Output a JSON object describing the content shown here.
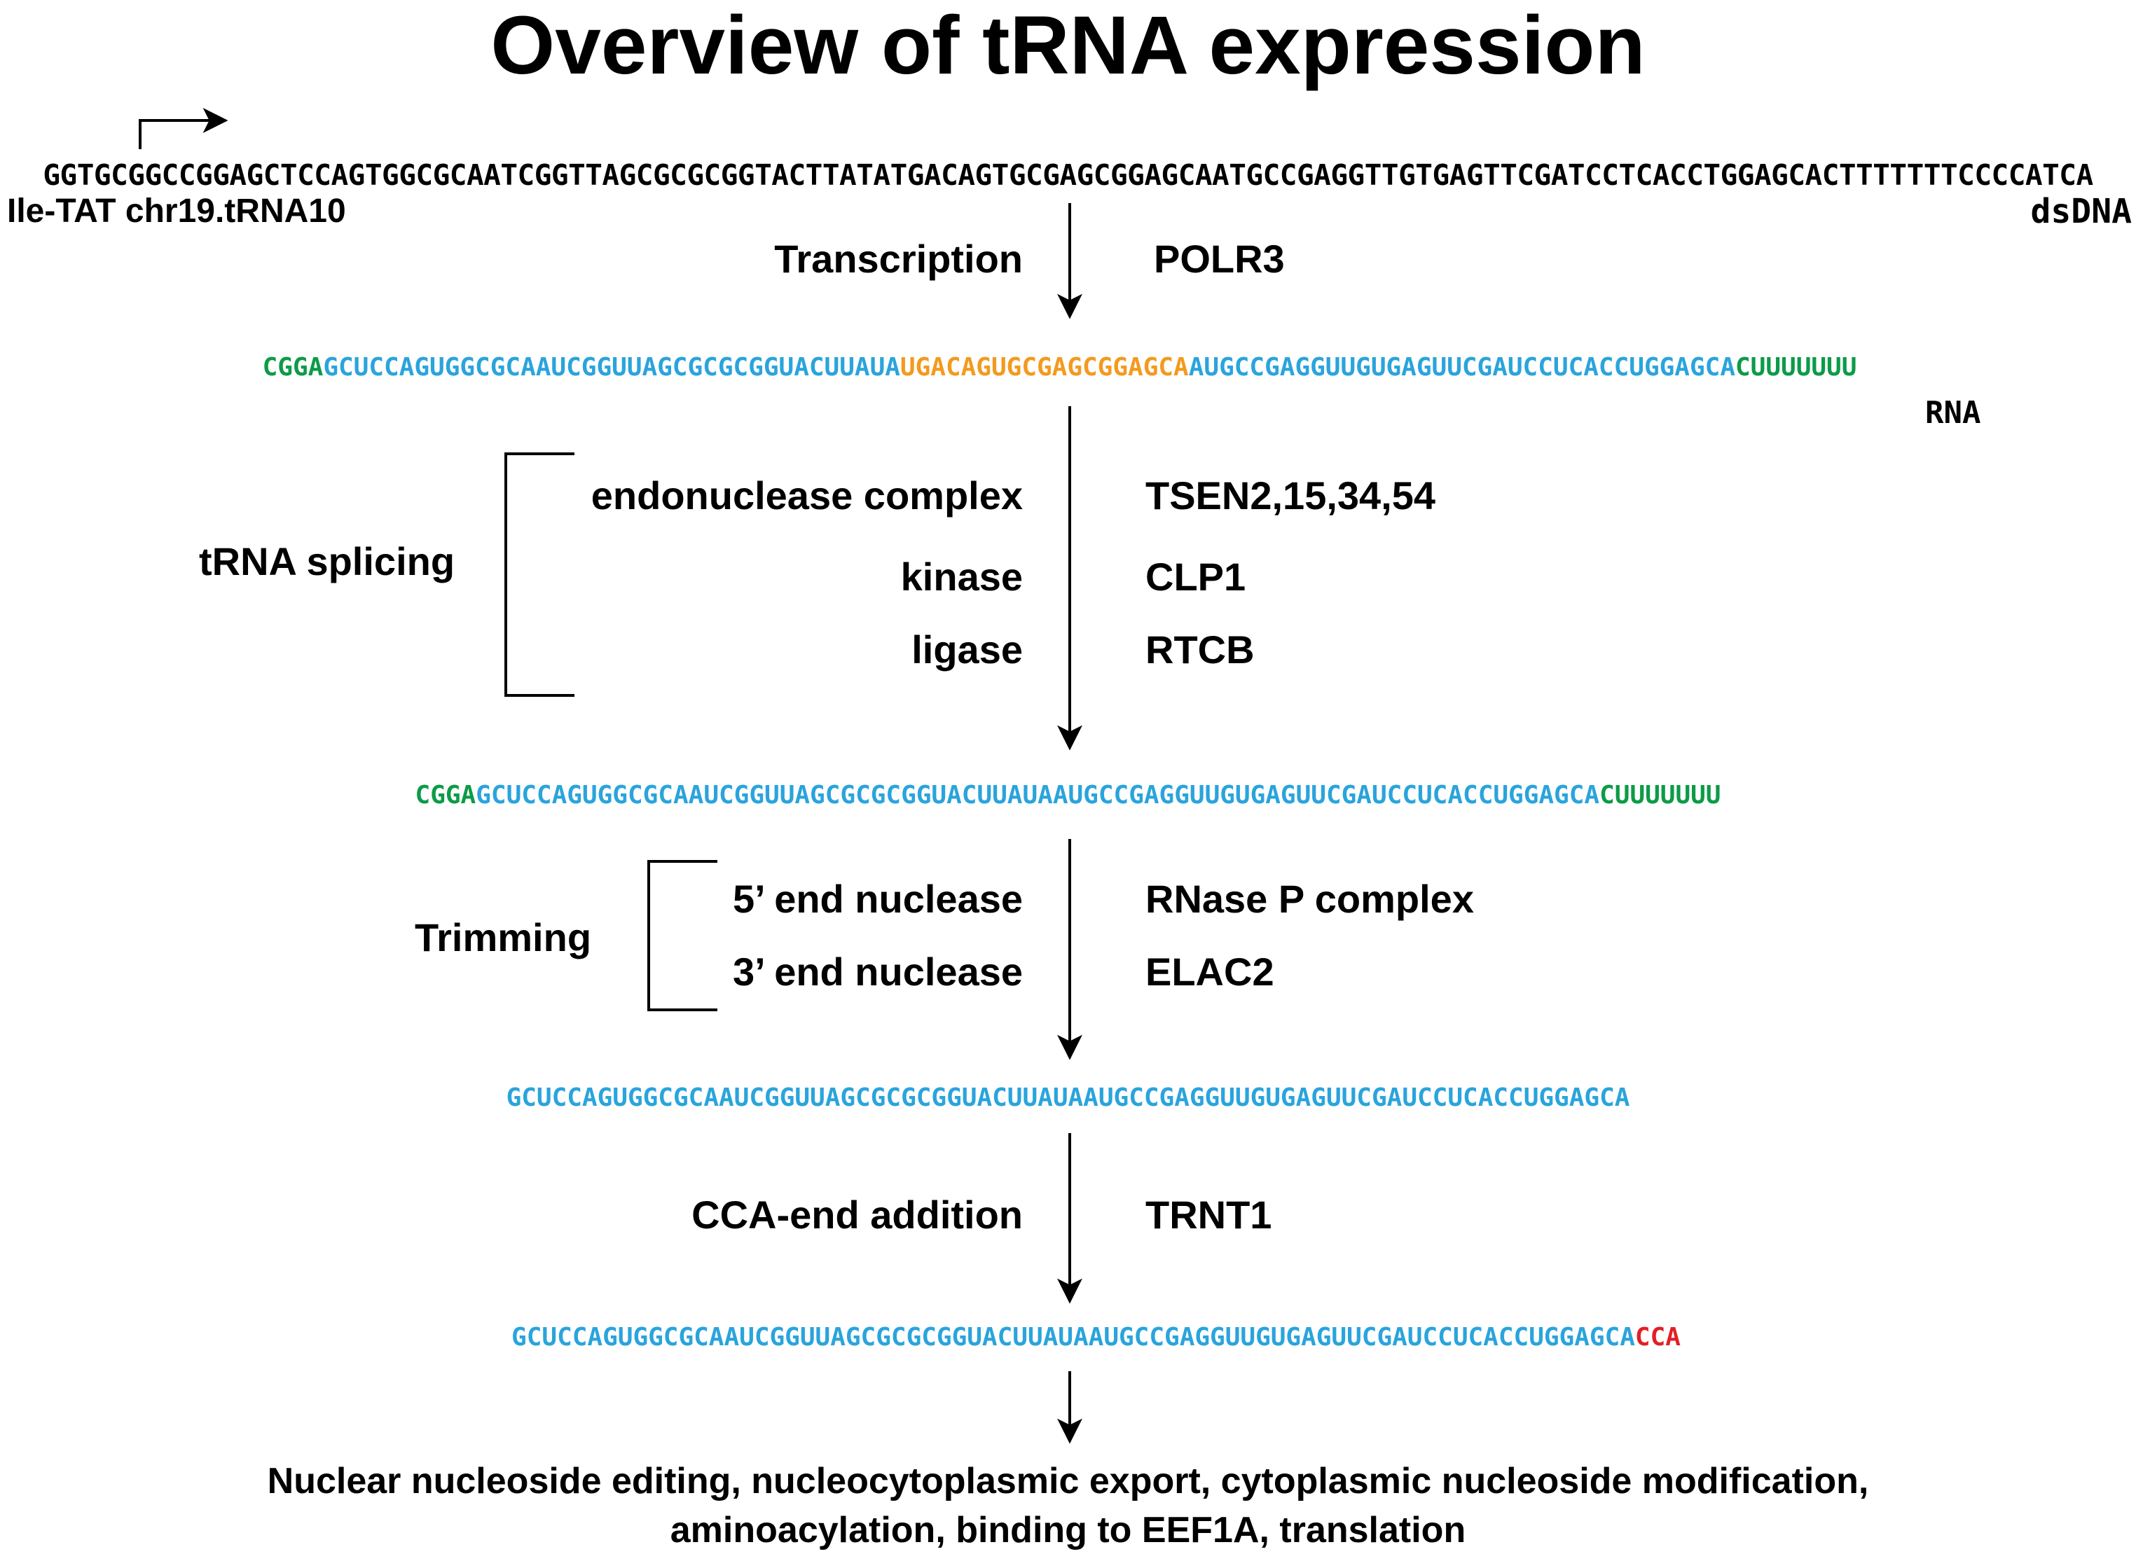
{
  "title": "Overview of tRNA expression",
  "colors": {
    "flank": "#0c9b47",
    "mature": "#2aa4dc",
    "intron": "#f39a1e",
    "cca": "#e21f26",
    "text": "#000000"
  },
  "dna": {
    "sequence": "GGTGCGGCCGGAGCTCCAGTGGCGCAATCGGTTAGCGCGCGGTACTTATATGACAGTGCGAGCGGAGCAATGCCGAGGTTGTGAGTTCGATCCTCACCTGGAGCACTTTTTTTCCCCATCA",
    "gene_label": "Ile-TAT chr19.tRNA10",
    "type_label": "dsDNA"
  },
  "steps": [
    {
      "label": "Transcription",
      "enzyme": "POLR3"
    }
  ],
  "pre_trna": {
    "flank5": "CGGA",
    "exon1": "GCUCCAGUGGCGCAAUCGGUUAGCGCGCGGUACUUAUA",
    "intron": "UGACAGUGCGAGCGGAGCA",
    "exon2": "AUGCCGAGGUUGUGAGUUCGAUCCUCACCUGGAGCA",
    "flank3": "CUUUUUUU",
    "type_label": "RNA"
  },
  "splicing": {
    "group_label": "tRNA splicing",
    "items": [
      {
        "label": "endonuclease complex",
        "enzyme": "TSEN2,15,34,54"
      },
      {
        "label": "kinase",
        "enzyme": "CLP1"
      },
      {
        "label": "ligase",
        "enzyme": "RTCB"
      }
    ]
  },
  "spliced": {
    "flank5": "CGGA",
    "body": "GCUCCAGUGGCGCAAUCGGUUAGCGCGCGGUACUUAUAAUGCCGAGGUUGUGAGUUCGAUCCUCACCUGGAGCA",
    "flank3": "CUUUUUUU"
  },
  "trimming": {
    "group_label": "Trimming",
    "items": [
      {
        "label": "5’ end nuclease",
        "enzyme": "RNase P complex"
      },
      {
        "label": "3’ end nuclease",
        "enzyme": "ELAC2"
      }
    ]
  },
  "trimmed": {
    "body": "GCUCCAGUGGCGCAAUCGGUUAGCGCGCGGUACUUAUAAUGCCGAGGUUGUGAGUUCGAUCCUCACCUGGAGCA"
  },
  "cca_step": {
    "label": "CCA-end addition",
    "enzyme": "TRNT1"
  },
  "mature": {
    "body": "GCUCCAGUGGCGCAAUCGGUUAGCGCGCGGUACUUAUAAUGCCGAGGUUGUGAGUUCGAUCCUCACCUGGAGCA",
    "cca": "CCA"
  },
  "final": {
    "line1": "Nuclear nucleoside editing, nucleocytoplasmic export, cytoplasmic nucleoside modification,",
    "line2": "aminoacylation, binding to EEF1A, translation"
  }
}
